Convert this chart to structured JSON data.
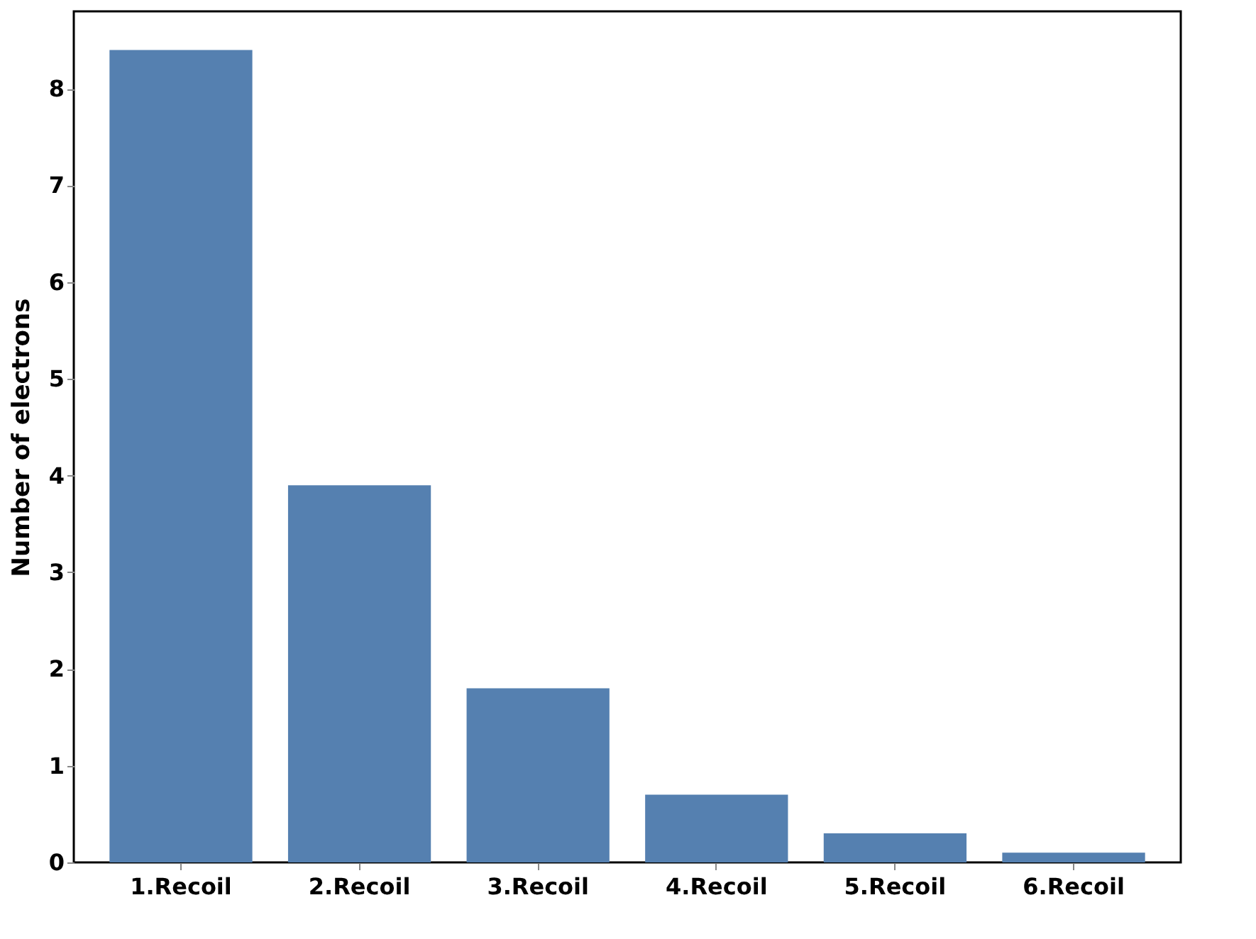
{
  "chart_data": {
    "type": "bar",
    "categories": [
      "1.Recoil",
      "2.Recoil",
      "3.Recoil",
      "4.Recoil",
      "5.Recoil",
      "6.Recoil"
    ],
    "values": [
      8.4,
      3.9,
      1.8,
      0.7,
      0.3,
      0.1
    ],
    "color": "#5580b0",
    "ylabel": "Number of electrons",
    "ylim": [
      0,
      8.8
    ],
    "yticks": [
      0,
      1,
      2,
      3,
      4,
      5,
      6,
      7,
      8
    ],
    "grid": false
  }
}
